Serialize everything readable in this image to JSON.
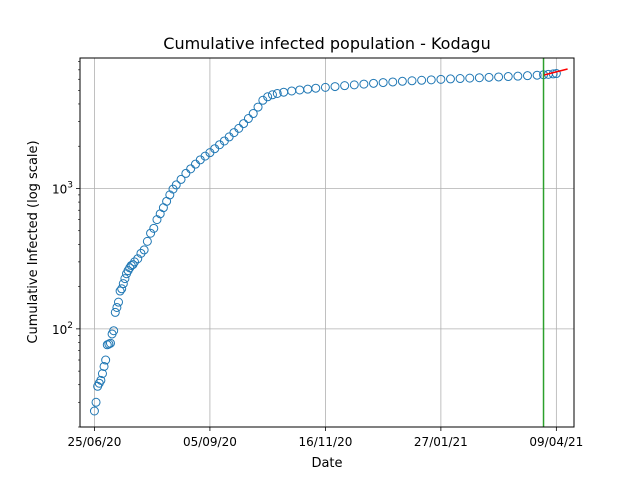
{
  "chart_data": {
    "type": "scatter",
    "title": "Cumulative infected population - Kodagu",
    "xlabel": "Date",
    "ylabel": "Cumulative Infected (log scale)",
    "y_scale": "log",
    "grid": true,
    "xlim": [
      "2020-06-16",
      "2021-04-20"
    ],
    "ylim": [
      20,
      8500
    ],
    "x_ticks": [
      {
        "date": "2020-06-25",
        "label": "25/06/20"
      },
      {
        "date": "2020-09-05",
        "label": "05/09/20"
      },
      {
        "date": "2020-11-16",
        "label": "16/11/20"
      },
      {
        "date": "2021-01-27",
        "label": "27/01/21"
      },
      {
        "date": "2021-04-09",
        "label": "09/04/21"
      }
    ],
    "y_ticks": [
      {
        "value": 100,
        "base": "10",
        "exp": "2"
      },
      {
        "value": 1000,
        "base": "10",
        "exp": "3"
      }
    ],
    "vertical_line": {
      "date": "2021-04-01",
      "color": "#2ca02c"
    },
    "colors": {
      "points": "#1f77b4",
      "fit": "#ff0000",
      "vline": "#2ca02c"
    },
    "series": [
      {
        "marker": "circle-open",
        "points": [
          {
            "x": "2020-06-25",
            "y": 26
          },
          {
            "x": "2020-06-26",
            "y": 30
          },
          {
            "x": "2020-06-27",
            "y": 39
          },
          {
            "x": "2020-06-28",
            "y": 41
          },
          {
            "x": "2020-06-29",
            "y": 43
          },
          {
            "x": "2020-06-30",
            "y": 48
          },
          {
            "x": "2020-07-01",
            "y": 54
          },
          {
            "x": "2020-07-02",
            "y": 60
          },
          {
            "x": "2020-07-03",
            "y": 77
          },
          {
            "x": "2020-07-04",
            "y": 78
          },
          {
            "x": "2020-07-05",
            "y": 79
          },
          {
            "x": "2020-07-06",
            "y": 92
          },
          {
            "x": "2020-07-07",
            "y": 97
          },
          {
            "x": "2020-07-08",
            "y": 131
          },
          {
            "x": "2020-07-09",
            "y": 142
          },
          {
            "x": "2020-07-10",
            "y": 155
          },
          {
            "x": "2020-07-11",
            "y": 186
          },
          {
            "x": "2020-07-12",
            "y": 193
          },
          {
            "x": "2020-07-13",
            "y": 210
          },
          {
            "x": "2020-07-14",
            "y": 228
          },
          {
            "x": "2020-07-15",
            "y": 247
          },
          {
            "x": "2020-07-16",
            "y": 260
          },
          {
            "x": "2020-07-17",
            "y": 272
          },
          {
            "x": "2020-07-18",
            "y": 283
          },
          {
            "x": "2020-07-19",
            "y": 287
          },
          {
            "x": "2020-07-20",
            "y": 300
          },
          {
            "x": "2020-07-22",
            "y": 316
          },
          {
            "x": "2020-07-24",
            "y": 345
          },
          {
            "x": "2020-07-26",
            "y": 365
          },
          {
            "x": "2020-07-28",
            "y": 420
          },
          {
            "x": "2020-07-30",
            "y": 480
          },
          {
            "x": "2020-08-01",
            "y": 520
          },
          {
            "x": "2020-08-03",
            "y": 600
          },
          {
            "x": "2020-08-05",
            "y": 660
          },
          {
            "x": "2020-08-07",
            "y": 730
          },
          {
            "x": "2020-08-09",
            "y": 810
          },
          {
            "x": "2020-08-11",
            "y": 900
          },
          {
            "x": "2020-08-13",
            "y": 990
          },
          {
            "x": "2020-08-15",
            "y": 1060
          },
          {
            "x": "2020-08-18",
            "y": 1160
          },
          {
            "x": "2020-08-21",
            "y": 1280
          },
          {
            "x": "2020-08-24",
            "y": 1380
          },
          {
            "x": "2020-08-27",
            "y": 1490
          },
          {
            "x": "2020-08-30",
            "y": 1600
          },
          {
            "x": "2020-09-02",
            "y": 1700
          },
          {
            "x": "2020-09-05",
            "y": 1800
          },
          {
            "x": "2020-09-08",
            "y": 1920
          },
          {
            "x": "2020-09-11",
            "y": 2050
          },
          {
            "x": "2020-09-14",
            "y": 2180
          },
          {
            "x": "2020-09-17",
            "y": 2330
          },
          {
            "x": "2020-09-20",
            "y": 2500
          },
          {
            "x": "2020-09-23",
            "y": 2680
          },
          {
            "x": "2020-09-26",
            "y": 2900
          },
          {
            "x": "2020-09-29",
            "y": 3150
          },
          {
            "x": "2020-10-02",
            "y": 3420
          },
          {
            "x": "2020-10-05",
            "y": 3800
          },
          {
            "x": "2020-10-08",
            "y": 4250
          },
          {
            "x": "2020-10-11",
            "y": 4500
          },
          {
            "x": "2020-10-14",
            "y": 4650
          },
          {
            "x": "2020-10-17",
            "y": 4750
          },
          {
            "x": "2020-10-21",
            "y": 4850
          },
          {
            "x": "2020-10-26",
            "y": 4950
          },
          {
            "x": "2020-10-31",
            "y": 5030
          },
          {
            "x": "2020-11-05",
            "y": 5100
          },
          {
            "x": "2020-11-10",
            "y": 5180
          },
          {
            "x": "2020-11-16",
            "y": 5250
          },
          {
            "x": "2020-11-22",
            "y": 5320
          },
          {
            "x": "2020-11-28",
            "y": 5400
          },
          {
            "x": "2020-12-04",
            "y": 5470
          },
          {
            "x": "2020-12-10",
            "y": 5540
          },
          {
            "x": "2020-12-16",
            "y": 5610
          },
          {
            "x": "2020-12-22",
            "y": 5680
          },
          {
            "x": "2020-12-28",
            "y": 5740
          },
          {
            "x": "2021-01-03",
            "y": 5800
          },
          {
            "x": "2021-01-09",
            "y": 5850
          },
          {
            "x": "2021-01-15",
            "y": 5900
          },
          {
            "x": "2021-01-21",
            "y": 5940
          },
          {
            "x": "2021-01-27",
            "y": 5990
          },
          {
            "x": "2021-02-02",
            "y": 6030
          },
          {
            "x": "2021-02-08",
            "y": 6070
          },
          {
            "x": "2021-02-14",
            "y": 6110
          },
          {
            "x": "2021-02-20",
            "y": 6150
          },
          {
            "x": "2021-02-26",
            "y": 6190
          },
          {
            "x": "2021-03-04",
            "y": 6230
          },
          {
            "x": "2021-03-10",
            "y": 6270
          },
          {
            "x": "2021-03-16",
            "y": 6310
          },
          {
            "x": "2021-03-22",
            "y": 6360
          },
          {
            "x": "2021-03-28",
            "y": 6410
          },
          {
            "x": "2021-04-01",
            "y": 6460
          },
          {
            "x": "2021-04-04",
            "y": 6500
          },
          {
            "x": "2021-04-07",
            "y": 6550
          },
          {
            "x": "2021-04-09",
            "y": 6590
          }
        ]
      }
    ],
    "fit_line": {
      "color": "#ff0000",
      "points": [
        {
          "x": "2021-04-01",
          "y": 6420
        },
        {
          "x": "2021-04-16",
          "y": 7100
        }
      ]
    }
  }
}
